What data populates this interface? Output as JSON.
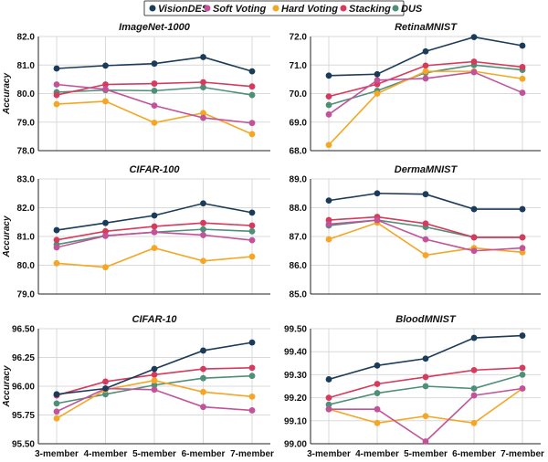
{
  "legend": {
    "position": "top-center",
    "entries": [
      {
        "name": "VisionDES",
        "color": "#1b3b5a"
      },
      {
        "name": "Soft Voting",
        "color": "#c2539a"
      },
      {
        "name": "Hard Voting",
        "color": "#f5a623"
      },
      {
        "name": "Stacking",
        "color": "#d63a5c"
      },
      {
        "name": "DUS",
        "color": "#4e8f77"
      }
    ]
  },
  "chart_data": [
    {
      "type": "line",
      "title": "ImageNet-1000",
      "ylabel": "Accuracy",
      "xlabel": "",
      "categories": [
        "3-member",
        "4-member",
        "5-member",
        "6-member",
        "7-member"
      ],
      "ylim": [
        78.0,
        82.0
      ],
      "yticks": [
        "78.0",
        "79.0",
        "80.0",
        "81.0",
        "82.0"
      ],
      "grid": true,
      "series": [
        {
          "name": "VisionDES",
          "values": [
            80.88,
            80.98,
            81.05,
            81.28,
            80.78
          ]
        },
        {
          "name": "Soft Voting",
          "values": [
            80.32,
            80.15,
            79.58,
            79.15,
            78.97
          ]
        },
        {
          "name": "Hard Voting",
          "values": [
            79.63,
            79.73,
            78.98,
            79.32,
            78.58
          ]
        },
        {
          "name": "Stacking",
          "values": [
            79.95,
            80.32,
            80.35,
            80.4,
            80.25
          ]
        },
        {
          "name": "DUS",
          "values": [
            80.05,
            80.12,
            80.1,
            80.22,
            79.95
          ]
        }
      ]
    },
    {
      "type": "line",
      "title": "RetinaMNIST",
      "ylabel": "",
      "xlabel": "",
      "categories": [
        "3-member",
        "4-member",
        "5-member",
        "6-member",
        "7-member"
      ],
      "ylim": [
        68.0,
        72.0
      ],
      "yticks": [
        "68.0",
        "69.0",
        "70.0",
        "71.0",
        "72.0"
      ],
      "grid": true,
      "series": [
        {
          "name": "VisionDES",
          "values": [
            70.63,
            70.68,
            71.48,
            71.98,
            71.68
          ]
        },
        {
          "name": "Soft Voting",
          "values": [
            69.27,
            70.47,
            70.53,
            70.75,
            70.03
          ]
        },
        {
          "name": "Hard Voting",
          "values": [
            68.2,
            70.0,
            70.78,
            70.78,
            70.52
          ]
        },
        {
          "name": "Stacking",
          "values": [
            69.9,
            70.33,
            70.98,
            71.12,
            70.93
          ]
        },
        {
          "name": "DUS",
          "values": [
            69.6,
            70.1,
            70.73,
            71.0,
            70.83
          ]
        }
      ]
    },
    {
      "type": "line",
      "title": "CIFAR-100",
      "ylabel": "Accuracy",
      "xlabel": "",
      "categories": [
        "3-member",
        "4-member",
        "5-member",
        "6-member",
        "7-member"
      ],
      "ylim": [
        79.0,
        83.0
      ],
      "yticks": [
        "79.0",
        "80.0",
        "81.0",
        "82.0",
        "83.0"
      ],
      "grid": true,
      "series": [
        {
          "name": "VisionDES",
          "values": [
            81.22,
            81.47,
            81.73,
            82.15,
            81.83
          ]
        },
        {
          "name": "Soft Voting",
          "values": [
            80.62,
            81.02,
            81.15,
            81.05,
            80.87
          ]
        },
        {
          "name": "Hard Voting",
          "values": [
            80.07,
            79.93,
            80.6,
            80.15,
            80.3
          ]
        },
        {
          "name": "Stacking",
          "values": [
            80.88,
            81.18,
            81.35,
            81.47,
            81.38
          ]
        },
        {
          "name": "DUS",
          "values": [
            80.72,
            81.03,
            81.15,
            81.25,
            81.18
          ]
        }
      ]
    },
    {
      "type": "line",
      "title": "DermaMNIST",
      "ylabel": "",
      "xlabel": "",
      "categories": [
        "3-member",
        "4-member",
        "5-member",
        "6-member",
        "7-member"
      ],
      "ylim": [
        85.0,
        89.0
      ],
      "yticks": [
        "85.0",
        "86.0",
        "87.0",
        "88.0",
        "89.0"
      ],
      "grid": true,
      "series": [
        {
          "name": "VisionDES",
          "values": [
            88.25,
            88.5,
            88.47,
            87.95,
            87.95
          ]
        },
        {
          "name": "Soft Voting",
          "values": [
            87.43,
            87.57,
            86.9,
            86.5,
            86.6
          ]
        },
        {
          "name": "Hard Voting",
          "values": [
            86.9,
            87.48,
            86.35,
            86.6,
            86.45
          ]
        },
        {
          "name": "Stacking",
          "values": [
            87.57,
            87.68,
            87.45,
            86.97,
            86.97
          ]
        },
        {
          "name": "DUS",
          "values": [
            87.38,
            87.57,
            87.33,
            86.97,
            86.97
          ]
        }
      ]
    },
    {
      "type": "line",
      "title": "CIFAR-10",
      "ylabel": "Accuracy",
      "xlabel": "",
      "categories": [
        "3-member",
        "4-member",
        "5-member",
        "6-member",
        "7-member"
      ],
      "ylim": [
        95.5,
        96.5
      ],
      "yticks": [
        "95.50",
        "95.75",
        "96.00",
        "96.25",
        "96.50"
      ],
      "grid": true,
      "series": [
        {
          "name": "VisionDES",
          "values": [
            95.93,
            95.98,
            96.15,
            96.31,
            96.38
          ]
        },
        {
          "name": "Soft Voting",
          "values": [
            95.78,
            95.98,
            95.97,
            95.82,
            95.79
          ]
        },
        {
          "name": "Hard Voting",
          "values": [
            95.72,
            95.97,
            96.05,
            95.95,
            95.91
          ]
        },
        {
          "name": "Stacking",
          "values": [
            95.92,
            96.04,
            96.1,
            96.15,
            96.16
          ]
        },
        {
          "name": "DUS",
          "values": [
            95.85,
            95.93,
            96.01,
            96.07,
            96.09
          ]
        }
      ]
    },
    {
      "type": "line",
      "title": "BloodMNIST",
      "ylabel": "",
      "xlabel": "",
      "categories": [
        "3-member",
        "4-member",
        "5-member",
        "6-member",
        "7-member"
      ],
      "ylim": [
        99.0,
        99.5
      ],
      "yticks": [
        "99.00",
        "99.10",
        "99.20",
        "99.30",
        "99.40",
        "99.50"
      ],
      "grid": true,
      "series": [
        {
          "name": "VisionDES",
          "values": [
            99.28,
            99.34,
            99.37,
            99.46,
            99.47
          ]
        },
        {
          "name": "Soft Voting",
          "values": [
            99.15,
            99.15,
            99.01,
            99.21,
            99.24
          ]
        },
        {
          "name": "Hard Voting",
          "values": [
            99.15,
            99.09,
            99.12,
            99.09,
            99.24
          ]
        },
        {
          "name": "Stacking",
          "values": [
            99.2,
            99.26,
            99.29,
            99.32,
            99.33
          ]
        },
        {
          "name": "DUS",
          "values": [
            99.17,
            99.22,
            99.25,
            99.24,
            99.3
          ]
        }
      ]
    }
  ]
}
